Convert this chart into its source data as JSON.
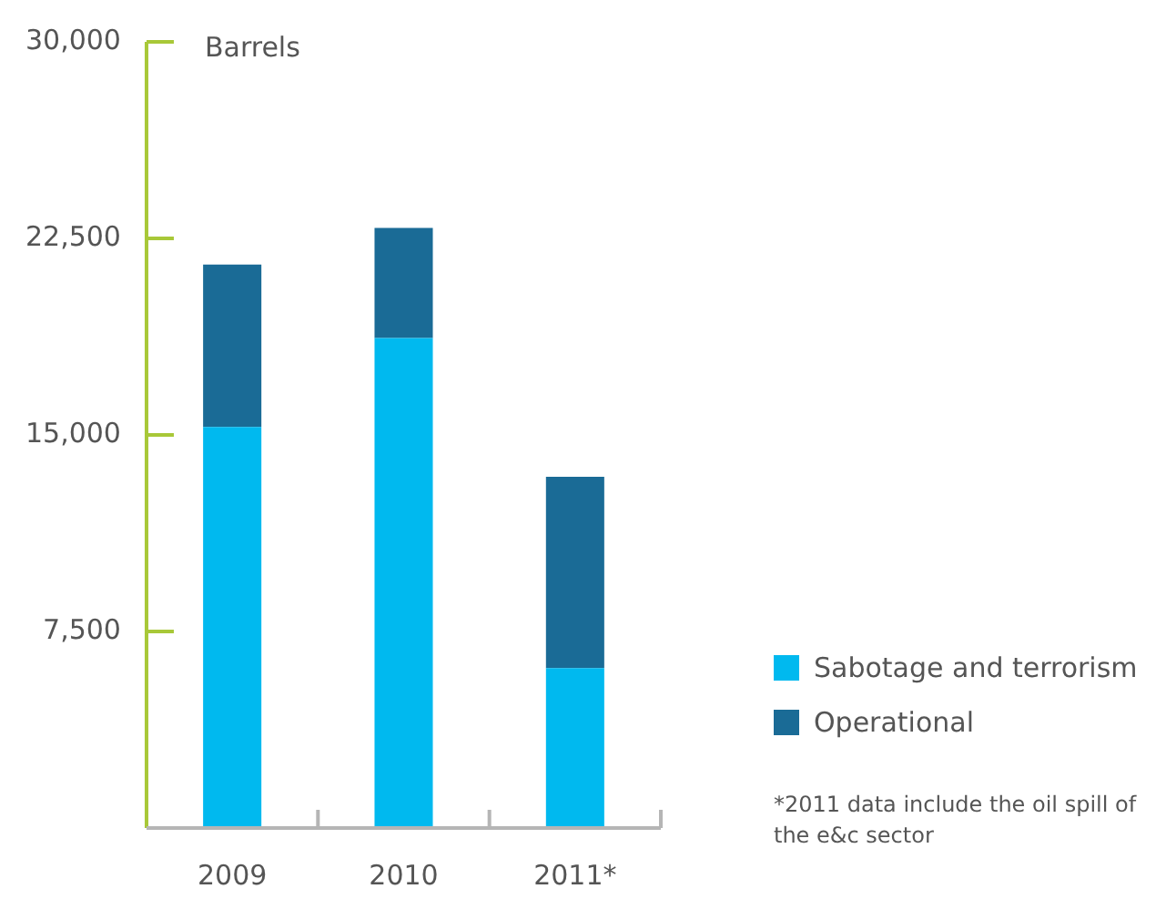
{
  "chart_data": {
    "type": "bar",
    "stacked": true,
    "ylabel": "Barrels",
    "categories": [
      "2009",
      "2010",
      "2011*"
    ],
    "series": [
      {
        "name": "Sabotage and terrorism",
        "color": "#00b9ef",
        "values": [
          15300,
          18700,
          6100
        ]
      },
      {
        "name": "Operational",
        "color": "#1a6b96",
        "values": [
          6200,
          4200,
          7300
        ]
      }
    ],
    "ylim": [
      0,
      30000
    ],
    "yticks": [
      {
        "value": 7500,
        "label": "7,500"
      },
      {
        "value": 15000,
        "label": "15,000"
      },
      {
        "value": 22500,
        "label": "22,500"
      },
      {
        "value": 30000,
        "label": "30,000"
      }
    ],
    "grid": false,
    "legend": "right",
    "annotations": [
      "*2011 data include the oil spill of the e&c sector"
    ]
  }
}
